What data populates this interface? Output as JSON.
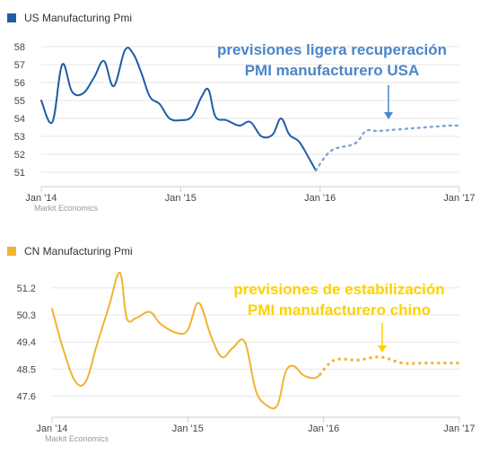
{
  "chart_data": [
    {
      "type": "line",
      "legend": "US Manufacturing Pmi",
      "color": "#1f5ca8",
      "forecast_color": "#7fa6d6",
      "annotation_color": "#4a86c8",
      "credit": "Markit Economics",
      "annotation": [
        "previsiones ligera recuperación",
        "PMI manufacturero USA"
      ],
      "ylim": [
        50.2,
        58.8
      ],
      "yticks": [
        "51",
        "52",
        "53",
        "54",
        "55",
        "56",
        "57",
        "58"
      ],
      "xlim": [
        2014.0,
        2017.0
      ],
      "xticks": [
        {
          "value": 2014.0,
          "label": "Jan '14"
        },
        {
          "value": 2015.0,
          "label": "Jan '15"
        },
        {
          "value": 2016.0,
          "label": "Jan '16"
        },
        {
          "value": 2017.0,
          "label": "Jan '17"
        }
      ],
      "grid": "horizontal",
      "series": [
        {
          "kind": "actual",
          "x": [
            2014.0,
            2014.08,
            2014.15,
            2014.22,
            2014.3,
            2014.38,
            2014.45,
            2014.52,
            2014.6,
            2014.66,
            2014.72,
            2014.78,
            2014.85,
            2014.92,
            2015.0,
            2015.08,
            2015.15,
            2015.2,
            2015.25,
            2015.33,
            2015.42,
            2015.5,
            2015.58,
            2015.66,
            2015.72,
            2015.78,
            2015.85,
            2015.92,
            2015.97
          ],
          "y": [
            55.0,
            53.8,
            57.0,
            55.5,
            55.4,
            56.3,
            57.2,
            55.8,
            57.8,
            57.6,
            56.5,
            55.2,
            54.8,
            54.0,
            53.9,
            54.1,
            55.2,
            55.6,
            54.1,
            53.9,
            53.6,
            53.8,
            53.0,
            53.1,
            54.0,
            53.1,
            52.7,
            51.8,
            51.1
          ]
        },
        {
          "kind": "forecast",
          "x": [
            2015.97,
            2016.08,
            2016.25,
            2016.33,
            2016.42,
            2016.58,
            2016.75,
            2016.92,
            2017.0
          ],
          "y": [
            51.1,
            52.2,
            52.6,
            53.3,
            53.3,
            53.4,
            53.5,
            53.6,
            53.6
          ]
        }
      ]
    },
    {
      "type": "line",
      "legend": "CN Manufacturing Pmi",
      "color": "#f2b233",
      "forecast_color": "#f2b233",
      "annotation_color": "#ffd100",
      "credit": "Markit Economics",
      "annotation": [
        "previsiones de estabilización",
        "PMI manufacturero chino"
      ],
      "ylim": [
        46.9,
        52.0
      ],
      "yticks": [
        "47.6",
        "48.5",
        "49.4",
        "50.3",
        "51.2"
      ],
      "ytick_values": [
        47.6,
        48.5,
        49.4,
        50.3,
        51.2
      ],
      "xlim": [
        2014.0,
        2017.0
      ],
      "xticks": [
        {
          "value": 2014.0,
          "label": "Jan '14"
        },
        {
          "value": 2015.0,
          "label": "Jan '15"
        },
        {
          "value": 2016.0,
          "label": "Jan '16"
        },
        {
          "value": 2017.0,
          "label": "Jan '17"
        }
      ],
      "grid": "horizontal",
      "series": [
        {
          "kind": "actual",
          "x": [
            2014.0,
            2014.08,
            2014.17,
            2014.25,
            2014.33,
            2014.42,
            2014.5,
            2014.55,
            2014.62,
            2014.72,
            2014.8,
            2014.92,
            2015.0,
            2015.08,
            2015.17,
            2015.25,
            2015.33,
            2015.42,
            2015.5,
            2015.58,
            2015.66,
            2015.72,
            2015.78,
            2015.85,
            2015.93,
            2015.97
          ],
          "y": [
            50.5,
            49.2,
            48.1,
            48.1,
            49.3,
            50.6,
            51.7,
            50.2,
            50.2,
            50.4,
            50.0,
            49.7,
            49.8,
            50.7,
            49.6,
            48.9,
            49.2,
            49.4,
            47.8,
            47.3,
            47.3,
            48.4,
            48.6,
            48.3,
            48.2,
            48.3
          ]
        },
        {
          "kind": "forecast",
          "x": [
            2015.97,
            2016.08,
            2016.25,
            2016.42,
            2016.58,
            2016.75,
            2017.0
          ],
          "y": [
            48.3,
            48.8,
            48.8,
            48.9,
            48.7,
            48.7,
            48.7
          ]
        }
      ]
    }
  ]
}
